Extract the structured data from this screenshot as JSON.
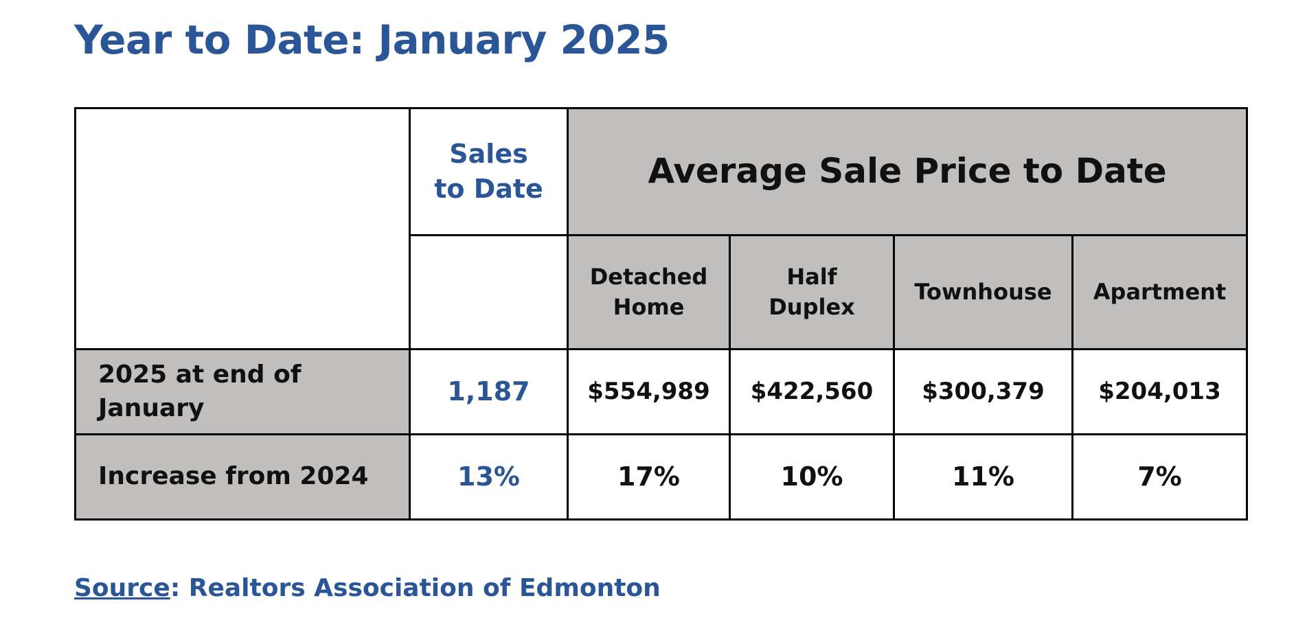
{
  "title": "Year to Date: January 2025",
  "table": {
    "sales_header": {
      "line1": "Sales",
      "line2": "to Date"
    },
    "avg_header": "Average Sale Price to Date",
    "sub_headers": [
      {
        "line1": "Detached",
        "line2": "Home"
      },
      {
        "line1": "Half",
        "line2": "Duplex"
      },
      {
        "line1": "Townhouse",
        "line2": ""
      },
      {
        "line1": "Apartment",
        "line2": ""
      }
    ],
    "rows": [
      {
        "label": "2025 at end of January",
        "sales": "1,187",
        "values": [
          "$554,989",
          "$422,560",
          "$300,379",
          "$204,013"
        ]
      },
      {
        "label": "Increase from 2024",
        "sales": "13%",
        "values": [
          "17%",
          "10%",
          "11%",
          "7%"
        ]
      }
    ]
  },
  "source": {
    "link_label": "Source",
    "text": ": Realtors Association of Edmonton"
  },
  "colors": {
    "accent_blue": "#2a5596",
    "header_gray": "#c0bfbd",
    "border": "#000000"
  }
}
